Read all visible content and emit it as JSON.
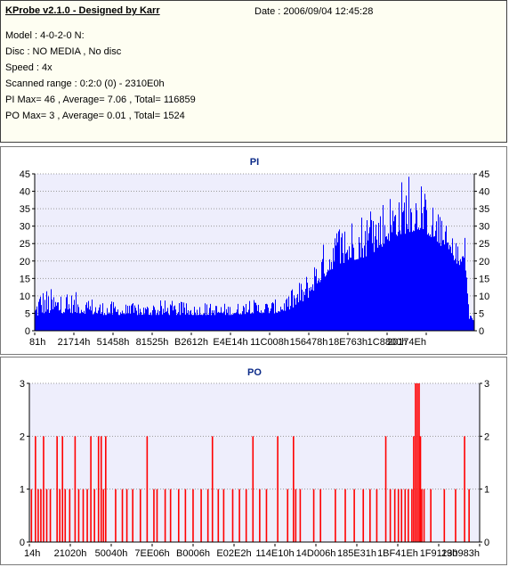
{
  "header": {
    "title": "KProbe v2.1.0 - Designed by Karr",
    "date": "Date : 2006/09/04 12:45:28",
    "lines": [
      "Model : 4-0-2-0 N:",
      "Disc : NO MEDIA , No disc",
      "Speed : 4x",
      "Scanned range : 0:2:0 (0) - 2310E0h",
      "PI Max= 46 , Average= 7.06 , Total= 116859",
      "PO Max= 3 , Average= 0.01 , Total= 1524"
    ]
  },
  "colors": {
    "pi": "#0000ff",
    "po": "#ff0000",
    "plot_bg": "#eeeefc",
    "grid": "#9a9a9a",
    "title": "#0b2a88"
  },
  "chart_data": [
    {
      "type": "bar",
      "title": "PI",
      "ylim": [
        0,
        45
      ],
      "yticks": [
        0,
        5,
        10,
        15,
        20,
        25,
        30,
        35,
        40,
        45
      ],
      "xtick_labels": [
        "81h",
        "21714h",
        "51458h",
        "81525h",
        "B2612h",
        "E4E14h",
        "11C008h",
        "156478h",
        "18E763h",
        "1C8800h",
        "20174Eh"
      ],
      "grid": true,
      "envelope": {
        "description_x": "fraction of scanned range",
        "x": [
          0.0,
          0.01,
          0.05,
          0.1,
          0.15,
          0.2,
          0.25,
          0.3,
          0.35,
          0.4,
          0.45,
          0.5,
          0.55,
          0.58,
          0.62,
          0.65,
          0.68,
          0.72,
          0.75,
          0.78,
          0.8,
          0.82,
          0.85,
          0.88,
          0.9,
          0.92,
          0.95,
          0.97,
          0.98,
          0.99,
          1.0
        ],
        "base": [
          3,
          5,
          5,
          5,
          4.5,
          4.5,
          4.5,
          4.5,
          4.5,
          4.5,
          4.5,
          5,
          5,
          6,
          9,
          14,
          18,
          20,
          21,
          23,
          25,
          27,
          28,
          29,
          27,
          25,
          21,
          18,
          20,
          3,
          3
        ],
        "peak": [
          10,
          13,
          12,
          11,
          9,
          8,
          8,
          9,
          8,
          8,
          8,
          9,
          9,
          11,
          17,
          24,
          30,
          34,
          36,
          38,
          40,
          42,
          46,
          42,
          38,
          34,
          28,
          24,
          28,
          5,
          5
        ]
      }
    },
    {
      "type": "bar",
      "title": "PO",
      "ylim": [
        0,
        3
      ],
      "yticks": [
        0,
        1,
        2,
        3
      ],
      "xtick_labels": [
        "14h",
        "21020h",
        "50040h",
        "7EE06h",
        "B0006h",
        "E02E2h",
        "114E10h",
        "14D006h",
        "185E31h",
        "1BF41Eh",
        "1F9119h",
        "230983h"
      ],
      "grid": true,
      "spikes": {
        "description_x": "fraction of scanned range",
        "x": [
          0.003,
          0.012,
          0.018,
          0.024,
          0.03,
          0.037,
          0.045,
          0.06,
          0.066,
          0.072,
          0.078,
          0.088,
          0.1,
          0.108,
          0.118,
          0.127,
          0.135,
          0.143,
          0.152,
          0.158,
          0.163,
          0.168,
          0.19,
          0.205,
          0.215,
          0.228,
          0.245,
          0.26,
          0.275,
          0.282,
          0.3,
          0.312,
          0.33,
          0.345,
          0.362,
          0.38,
          0.395,
          0.405,
          0.418,
          0.43,
          0.45,
          0.465,
          0.48,
          0.495,
          0.51,
          0.525,
          0.55,
          0.572,
          0.585,
          0.59,
          0.6,
          0.63,
          0.645,
          0.678,
          0.7,
          0.72,
          0.74,
          0.755,
          0.77,
          0.79,
          0.8,
          0.81,
          0.818,
          0.825,
          0.833,
          0.84,
          0.848,
          0.852,
          0.856,
          0.86,
          0.864,
          0.867,
          0.87,
          0.875,
          0.89,
          0.92,
          0.945,
          0.965,
          0.975
        ],
        "y": [
          1,
          2,
          1,
          1,
          2,
          1,
          1,
          2,
          1,
          2,
          1,
          1,
          2,
          1,
          1,
          1,
          2,
          1,
          2,
          2,
          1,
          2,
          1,
          1,
          1,
          1,
          1,
          2,
          1,
          1,
          1,
          1,
          1,
          1,
          1,
          1,
          1,
          2,
          1,
          1,
          1,
          1,
          1,
          2,
          1,
          1,
          2,
          1,
          2,
          1,
          1,
          1,
          1,
          1,
          1,
          1,
          1,
          1,
          1,
          2,
          1,
          1,
          1,
          1,
          1,
          1,
          1,
          2,
          3,
          3,
          3,
          2,
          1,
          1,
          1,
          1,
          1,
          2,
          1
        ]
      }
    }
  ]
}
